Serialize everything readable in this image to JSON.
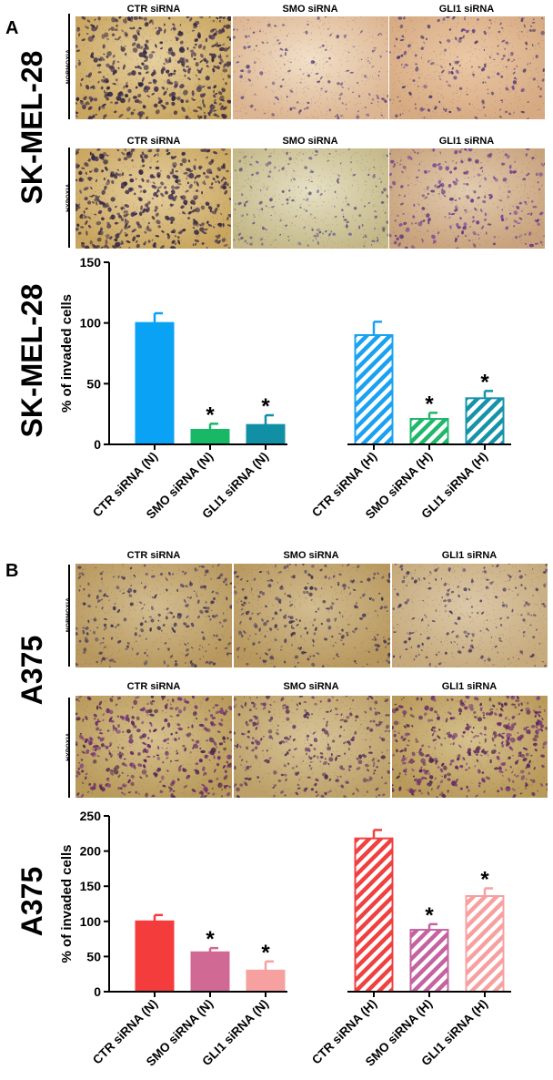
{
  "panels": [
    {
      "letter": "A",
      "cell_line": "SK-MEL-28",
      "rows": [
        {
          "condition": "NORMOXIA",
          "columns": [
            "CTR siRNA",
            "SMO siRNA",
            "GLI1 siRNA"
          ]
        },
        {
          "condition": "HYPOXIA",
          "columns": [
            "CTR siRNA",
            "SMO siRNA",
            "GLI1 siRNA"
          ]
        }
      ]
    },
    {
      "letter": "B",
      "cell_line": "A375",
      "rows": [
        {
          "condition": "NORMOXIA",
          "columns": [
            "CTR siRNA",
            "SMO siRNA",
            "GLI1 siRNA"
          ]
        },
        {
          "condition": "HYPOXIA",
          "columns": [
            "CTR siRNA",
            "SMO siRNA",
            "GLI1 siRNA"
          ]
        }
      ]
    }
  ],
  "chart_data": [
    {
      "type": "bar",
      "title": "",
      "side_label": "SK-MEL-28",
      "ylabel": "% of invaded cells",
      "xlabel": "",
      "ylim": [
        0,
        150
      ],
      "yticks": [
        0,
        50,
        100,
        150
      ],
      "categories": [
        "CTR siRNA (N)",
        "SMO siRNA (N)",
        "GLI1 siRNA (N)",
        "CTR siRNA (H)",
        "SMO siRNA (H)",
        "GLI1 siRNA (H)"
      ],
      "values": [
        100,
        12,
        16,
        90,
        21,
        38
      ],
      "errors": [
        8,
        5,
        8,
        11,
        5,
        6
      ],
      "significance": [
        "",
        "*",
        "*",
        "",
        "*",
        "*"
      ],
      "colors": [
        "#0aa2f5",
        "#18b866",
        "#118fa5",
        "#1aa2f0",
        "#1fb86a",
        "#1593a8"
      ],
      "hatched": [
        false,
        false,
        false,
        true,
        true,
        true
      ]
    },
    {
      "type": "bar",
      "title": "",
      "side_label": "A375",
      "ylabel": "% of invaded cells",
      "xlabel": "",
      "ylim": [
        0,
        250
      ],
      "yticks": [
        0,
        50,
        100,
        150,
        200,
        250
      ],
      "categories": [
        "CTR siRNA (N)",
        "SMO siRNA (N)",
        "GLI1 siRNA (N)",
        "CTR siRNA (H)",
        "SMO siRNA (H)",
        "GLI1 siRNA (H)"
      ],
      "values": [
        100,
        56,
        30,
        218,
        88,
        136
      ],
      "errors": [
        9,
        6,
        13,
        12,
        8,
        11
      ],
      "significance": [
        "",
        "*",
        "*",
        "",
        "*",
        "*"
      ],
      "colors": [
        "#f43c3c",
        "#d06a95",
        "#f6a0a0",
        "#f04040",
        "#c463a0",
        "#f7a0a0"
      ],
      "hatched": [
        false,
        false,
        false,
        true,
        true,
        true
      ]
    }
  ]
}
